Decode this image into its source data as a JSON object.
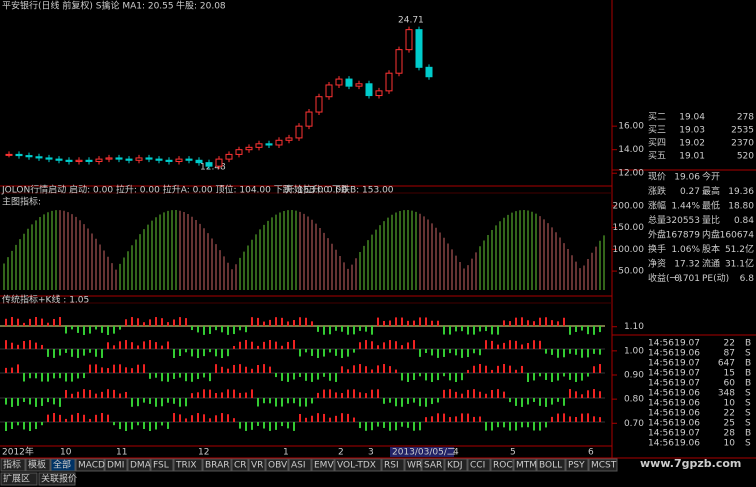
{
  "main_chart": {
    "title": "平安银行(日线 前复权) S擒论 MA1: 20.55",
    "signal": "牛股: 20.08",
    "high_label": "24.71",
    "low_label": "12.48",
    "ylim": [
      11,
      25.7
    ],
    "yticks": [
      {
        "value": 16,
        "label": "16.00"
      },
      {
        "value": 14,
        "label": "14.00"
      },
      {
        "value": 12,
        "label": "12.00"
      }
    ],
    "closes": [
      13.6,
      13.5,
      13.4,
      13.3,
      13.2,
      13.1,
      13.0,
      13.1,
      13.0,
      13.2,
      13.3,
      13.2,
      13.1,
      13.3,
      13.2,
      13.1,
      13.0,
      13.2,
      13.1,
      12.9,
      12.6,
      13.2,
      13.6,
      14.0,
      14.2,
      14.5,
      14.4,
      14.8,
      15.0,
      16.0,
      17.2,
      18.5,
      19.5,
      20.0,
      19.4,
      19.6,
      18.6,
      19.0,
      20.5,
      22.5,
      24.2,
      21.0,
      20.2
    ]
  },
  "indicator1": {
    "header": "JOLON行情启动 启动: 0.00 拉升: 0.00 拉升A: 0.00 顶位: 104.00 下跌: 153.00 下跌B: 153.00",
    "header2": "开始拉升: 0.00",
    "note": "主图指标:",
    "ylim": [
      -5,
      225
    ],
    "yticks": [
      {
        "value": 200,
        "label": "200.00"
      },
      {
        "value": 150,
        "label": "150.00"
      },
      {
        "value": 100,
        "label": "100.00"
      },
      {
        "value": 50,
        "label": "50.00"
      }
    ]
  },
  "indicator2": {
    "header": "传统指标+K线 : 1.05",
    "ylim": [
      0.61,
      1.19
    ],
    "yticks": [
      {
        "value": 1.1,
        "label": "1.10"
      },
      {
        "value": 1,
        "label": "1.00"
      },
      {
        "value": 0.9,
        "label": "0.90"
      },
      {
        "value": 0.8,
        "label": "0.80"
      },
      {
        "value": 0.7,
        "label": "0.70"
      }
    ]
  },
  "date_axis": [
    "2012年",
    "10",
    "11",
    "12",
    "1",
    "2",
    "3",
    "2013/03/05/二",
    "4",
    "5",
    "6"
  ],
  "tabs": [
    "指标",
    "模板",
    "全部",
    "MACD",
    "DMI",
    "DMA",
    "FSL",
    "TRIX",
    "BRAR",
    "CR",
    "VR",
    "OBV",
    "ASI",
    "EMV",
    "VOL-TDX",
    "RSI",
    "WR",
    "SAR",
    "KDJ",
    "CCI",
    "ROC",
    "MTM",
    "BOLL",
    "PSY",
    "MCST"
  ],
  "bottom_tabs": [
    "扩展区",
    "关联报价"
  ],
  "watermark": "www.7gpzb.com",
  "order_book": [
    [
      "买二",
      "19.04",
      "278"
    ],
    [
      "买三",
      "19.03",
      "2535"
    ],
    [
      "买四",
      "19.02",
      "2370"
    ],
    [
      "买五",
      "19.01",
      "520"
    ]
  ],
  "quotes": [
    [
      "现价",
      "19.06",
      "今开"
    ],
    [
      "涨跌",
      "0.27",
      "最高",
      "19.36"
    ],
    [
      "涨幅",
      "1.44%",
      "最低",
      "18.80"
    ],
    [
      "总量",
      "320553",
      "量比",
      "0.84"
    ],
    [
      "外盘",
      "167879",
      "内盘",
      "160674"
    ],
    [
      "换手",
      "1.06%",
      "股本",
      "51.2亿"
    ],
    [
      "净资",
      "17.32",
      "流通",
      "31.1亿"
    ],
    [
      "收益(一)",
      "0.701",
      "PE(动)",
      "6.8"
    ]
  ],
  "trades": [
    [
      "14:56",
      "19.07",
      "22",
      "B"
    ],
    [
      "14:56",
      "19.06",
      "87",
      "S"
    ],
    [
      "14:56",
      "19.07",
      "647",
      "B"
    ],
    [
      "14:56",
      "19.07",
      "15",
      "B"
    ],
    [
      "14:56",
      "19.07",
      "60",
      "B"
    ],
    [
      "14:56",
      "19.06",
      "348",
      "S"
    ],
    [
      "14:56",
      "19.06",
      "10",
      "S"
    ],
    [
      "14:56",
      "19.06",
      "22",
      "S"
    ],
    [
      "14:56",
      "19.06",
      "25",
      "S"
    ],
    [
      "14:56",
      "19.07",
      "28",
      "B"
    ],
    [
      "14:56",
      "19.06",
      "10",
      "S"
    ]
  ]
}
